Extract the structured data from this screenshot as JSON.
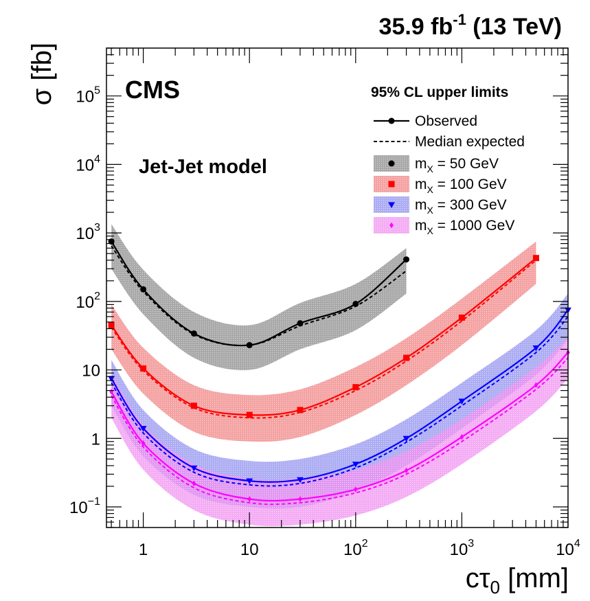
{
  "header": {
    "lumi": "35.9 fb",
    "lumi_exp": "-1",
    "energy": " (13 TeV)"
  },
  "labels": {
    "experiment": "CMS",
    "model": "Jet-Jet model",
    "legend_title": "95% CL upper limits",
    "observed": "Observed",
    "expected": "Median expected"
  },
  "chart_data": {
    "type": "line",
    "title": "",
    "xlabel": "cτ",
    "xlabel_sub": "0",
    "xlabel_unit": " [mm]",
    "ylabel": "σ [fb]",
    "xscale": "log",
    "yscale": "log",
    "xlim": [
      0.45,
      10000
    ],
    "ylim": [
      0.05,
      500000
    ],
    "x_ticks": [
      {
        "v": 1,
        "label": "1",
        "exp": ""
      },
      {
        "v": 10,
        "label": "10",
        "exp": ""
      },
      {
        "v": 100,
        "label": "10",
        "exp": "2"
      },
      {
        "v": 1000,
        "label": "10",
        "exp": "3"
      },
      {
        "v": 10000,
        "label": "10",
        "exp": "4"
      }
    ],
    "y_ticks": [
      {
        "v": 0.1,
        "label": "10",
        "exp": "−1"
      },
      {
        "v": 1,
        "label": "1",
        "exp": ""
      },
      {
        "v": 10,
        "label": "10",
        "exp": ""
      },
      {
        "v": 100,
        "label": "10",
        "exp": "2"
      },
      {
        "v": 1000,
        "label": "10",
        "exp": "3"
      },
      {
        "v": 10000,
        "label": "10",
        "exp": "4"
      },
      {
        "v": 100000,
        "label": "10",
        "exp": "5"
      }
    ],
    "legend_position": "top-right",
    "series": [
      {
        "name": "m",
        "name_sub": "X",
        "name_rest": " = 50 GeV",
        "color": "#000000",
        "band_color": "#8a8a8a",
        "marker": "circle",
        "observed": [
          [
            0.5,
            750
          ],
          [
            1,
            150
          ],
          [
            3,
            34
          ],
          [
            10,
            23
          ],
          [
            30,
            48
          ],
          [
            100,
            92
          ],
          [
            300,
            410
          ]
        ],
        "expected": [
          [
            0.5,
            650
          ],
          [
            1,
            140
          ],
          [
            3,
            33
          ],
          [
            10,
            23
          ],
          [
            30,
            44
          ],
          [
            100,
            85
          ],
          [
            300,
            280
          ]
        ],
        "band_lo": [
          [
            0.5,
            300
          ],
          [
            1,
            65
          ],
          [
            3,
            15
          ],
          [
            10,
            10
          ],
          [
            30,
            20
          ],
          [
            100,
            38
          ],
          [
            300,
            130
          ]
        ],
        "band_hi": [
          [
            0.5,
            1350
          ],
          [
            1,
            290
          ],
          [
            3,
            70
          ],
          [
            10,
            45
          ],
          [
            30,
            95
          ],
          [
            100,
            180
          ],
          [
            300,
            600
          ]
        ]
      },
      {
        "name": "m",
        "name_sub": "X",
        "name_rest": " = 100 GeV",
        "color": "#ff0000",
        "band_color": "#f08080",
        "marker": "square",
        "observed": [
          [
            0.5,
            45
          ],
          [
            1,
            10.5
          ],
          [
            3,
            3.0
          ],
          [
            10,
            2.2
          ],
          [
            30,
            2.6
          ],
          [
            100,
            5.6
          ],
          [
            300,
            15
          ],
          [
            1000,
            58
          ],
          [
            5000,
            430
          ]
        ],
        "expected": [
          [
            0.5,
            42
          ],
          [
            1,
            9.8
          ],
          [
            3,
            2.8
          ],
          [
            10,
            2.0
          ],
          [
            30,
            2.4
          ],
          [
            100,
            5.0
          ],
          [
            300,
            13.5
          ],
          [
            1000,
            52
          ],
          [
            5000,
            400
          ]
        ],
        "band_lo": [
          [
            0.5,
            20
          ],
          [
            1,
            4.5
          ],
          [
            3,
            1.25
          ],
          [
            10,
            0.9
          ],
          [
            30,
            1.05
          ],
          [
            100,
            2.2
          ],
          [
            300,
            6.0
          ],
          [
            1000,
            23
          ],
          [
            5000,
            180
          ]
        ],
        "band_hi": [
          [
            0.5,
            90
          ],
          [
            1,
            21
          ],
          [
            3,
            6.0
          ],
          [
            10,
            4.3
          ],
          [
            30,
            5.2
          ],
          [
            100,
            11
          ],
          [
            300,
            29
          ],
          [
            1000,
            110
          ],
          [
            5000,
            750
          ]
        ]
      },
      {
        "name": "m",
        "name_sub": "X",
        "name_rest": " = 300 GeV",
        "color": "#0000ff",
        "band_color": "#8f8fef",
        "marker": "triangle-down",
        "observed": [
          [
            0.5,
            7.5
          ],
          [
            1,
            1.4
          ],
          [
            3,
            0.37
          ],
          [
            10,
            0.24
          ],
          [
            30,
            0.25
          ],
          [
            100,
            0.42
          ],
          [
            300,
            1.0
          ],
          [
            1000,
            3.5
          ],
          [
            5000,
            21
          ],
          [
            10000,
            75
          ]
        ],
        "expected": [
          [
            0.5,
            6.5
          ],
          [
            1,
            1.2
          ],
          [
            3,
            0.32
          ],
          [
            10,
            0.21
          ],
          [
            30,
            0.22
          ],
          [
            100,
            0.37
          ],
          [
            300,
            0.88
          ],
          [
            1000,
            3.0
          ],
          [
            5000,
            18
          ],
          [
            10000,
            60
          ]
        ],
        "band_lo": [
          [
            0.5,
            3.0
          ],
          [
            1,
            0.55
          ],
          [
            3,
            0.15
          ],
          [
            10,
            0.1
          ],
          [
            30,
            0.1
          ],
          [
            100,
            0.17
          ],
          [
            300,
            0.4
          ],
          [
            1000,
            1.4
          ],
          [
            5000,
            8.5
          ],
          [
            10000,
            28
          ]
        ],
        "band_hi": [
          [
            0.5,
            14
          ],
          [
            1,
            2.6
          ],
          [
            3,
            0.7
          ],
          [
            10,
            0.47
          ],
          [
            30,
            0.5
          ],
          [
            100,
            0.82
          ],
          [
            300,
            1.9
          ],
          [
            1000,
            6.5
          ],
          [
            5000,
            38
          ],
          [
            10000,
            130
          ]
        ]
      },
      {
        "name": "m",
        "name_sub": "X",
        "name_rest": " = 1000 GeV",
        "color": "#ff00ff",
        "band_color": "#f08ef0",
        "marker": "diamond",
        "observed": [
          [
            0.5,
            4.8
          ],
          [
            1,
            0.85
          ],
          [
            3,
            0.22
          ],
          [
            10,
            0.13
          ],
          [
            30,
            0.13
          ],
          [
            100,
            0.18
          ],
          [
            300,
            0.34
          ],
          [
            1000,
            1.05
          ],
          [
            5000,
            6.0
          ],
          [
            10000,
            18
          ]
        ],
        "expected": [
          [
            0.5,
            4.2
          ],
          [
            1,
            0.75
          ],
          [
            3,
            0.19
          ],
          [
            10,
            0.115
          ],
          [
            30,
            0.115
          ],
          [
            100,
            0.16
          ],
          [
            300,
            0.3
          ],
          [
            1000,
            0.9
          ],
          [
            5000,
            5.2
          ],
          [
            10000,
            15
          ]
        ],
        "band_lo": [
          [
            0.5,
            2.0
          ],
          [
            1,
            0.35
          ],
          [
            3,
            0.09
          ],
          [
            10,
            0.055
          ],
          [
            30,
            0.055
          ],
          [
            100,
            0.075
          ],
          [
            300,
            0.14
          ],
          [
            1000,
            0.42
          ],
          [
            5000,
            2.5
          ],
          [
            10000,
            7.5
          ]
        ],
        "band_hi": [
          [
            0.5,
            9.0
          ],
          [
            1,
            1.6
          ],
          [
            3,
            0.42
          ],
          [
            10,
            0.26
          ],
          [
            30,
            0.26
          ],
          [
            100,
            0.35
          ],
          [
            300,
            0.65
          ],
          [
            1000,
            1.9
          ],
          [
            5000,
            11
          ],
          [
            10000,
            30
          ]
        ]
      }
    ]
  }
}
